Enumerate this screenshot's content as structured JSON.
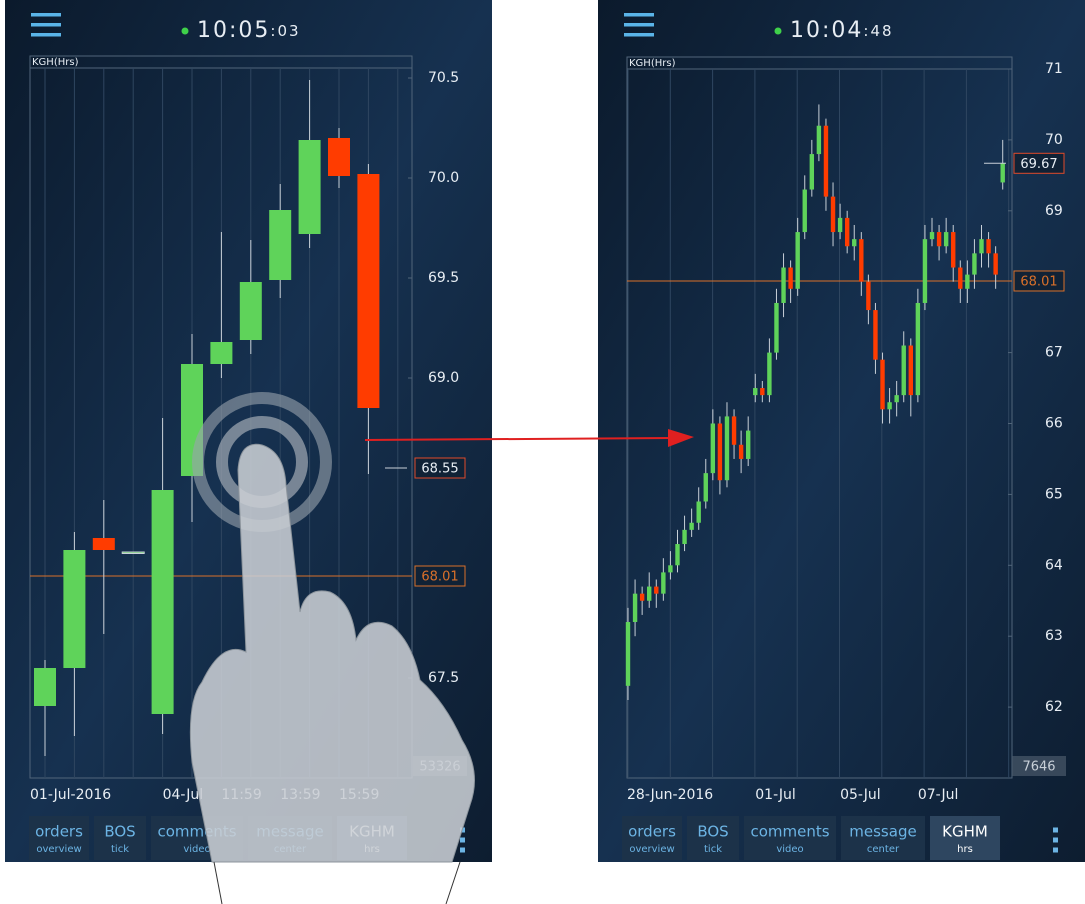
{
  "tabs": [
    {
      "title": "orders",
      "subtitle": "overview"
    },
    {
      "title": "BOS",
      "subtitle": "tick"
    },
    {
      "title": "comments",
      "subtitle": "video"
    },
    {
      "title": "message",
      "subtitle": "center"
    },
    {
      "title": "KGHM",
      "subtitle": "hrs",
      "active": true
    }
  ],
  "screens": [
    {
      "clock": "10:05",
      "clock_seconds": ":03"
    },
    {
      "clock": "10:04",
      "clock_seconds": ":48"
    }
  ],
  "chart_data": [
    {
      "type": "candlestick",
      "title": "KGH(Hrs)",
      "categories": [
        "01-Jul-2016",
        null,
        null,
        null,
        "04-Jul",
        null,
        "11:59",
        null,
        "13:59",
        null,
        "15:59",
        null
      ],
      "open": [
        67.36,
        67.55,
        68.2,
        68.13,
        67.32,
        68.51,
        69.07,
        69.19,
        69.49,
        69.72,
        70.2,
        70.02
      ],
      "high": [
        67.59,
        68.23,
        68.39,
        68.13,
        68.8,
        69.22,
        69.73,
        69.69,
        69.97,
        70.49,
        70.25,
        70.07
      ],
      "low": [
        67.11,
        67.21,
        67.72,
        68.13,
        67.22,
        68.28,
        69.0,
        69.12,
        69.4,
        69.65,
        69.95,
        68.52
      ],
      "close": [
        67.55,
        68.14,
        68.14,
        68.13,
        68.44,
        69.07,
        69.18,
        69.48,
        69.84,
        70.19,
        70.01,
        68.85
      ],
      "ylim": [
        67.0,
        70.55
      ],
      "yticks": [
        67.5,
        {
          "value": 69,
          "label": "69.0"
        },
        69.5,
        {
          "value": 70,
          "label": "70.0"
        },
        70.5
      ],
      "up_color": "#5fd35a",
      "down_color": "#ff3c00",
      "last_price": 68.55,
      "reference_price": 68.01,
      "reference_color": "#d9702a",
      "volume": 53326
    },
    {
      "type": "candlestick",
      "title": "KGH(Hrs)",
      "categories": [
        "28-Jun-2016",
        null,
        null,
        null,
        null,
        null,
        null,
        null,
        null,
        null,
        null,
        null,
        null,
        null,
        null,
        null,
        null,
        null,
        "01-Jul",
        null,
        null,
        null,
        null,
        null,
        null,
        null,
        null,
        null,
        null,
        null,
        "05-Jul",
        null,
        null,
        null,
        null,
        null,
        null,
        null,
        null,
        null,
        null,
        "07-Jul",
        null,
        null,
        null,
        null,
        null,
        null,
        null,
        null,
        null,
        null,
        null,
        null
      ],
      "open": [
        62.3,
        63.2,
        63.6,
        63.5,
        63.7,
        63.6,
        63.9,
        64.0,
        64.3,
        64.5,
        64.6,
        64.9,
        65.3,
        66.0,
        65.2,
        66.1,
        65.7,
        65.5,
        66.4,
        66.5,
        66.4,
        67.0,
        67.7,
        68.2,
        67.9,
        68.7,
        69.3,
        69.8,
        70.2,
        69.2,
        68.7,
        68.9,
        68.5,
        68.6,
        68.0,
        67.6,
        66.9,
        66.2,
        66.3,
        66.4,
        67.1,
        66.4,
        67.7,
        68.6,
        68.7,
        68.5,
        68.7,
        68.2,
        67.9,
        68.1,
        68.4,
        68.6,
        68.4,
        69.4
      ],
      "high": [
        63.4,
        63.8,
        63.7,
        63.9,
        63.8,
        64.1,
        64.2,
        64.5,
        64.7,
        64.8,
        65.1,
        65.5,
        66.2,
        66.1,
        66.3,
        66.2,
        65.9,
        66.1,
        66.7,
        66.6,
        67.2,
        67.9,
        68.4,
        68.3,
        68.9,
        69.5,
        70.0,
        70.5,
        70.3,
        69.4,
        69.1,
        69.0,
        68.8,
        68.7,
        68.1,
        67.7,
        67.0,
        66.5,
        66.6,
        67.3,
        67.2,
        67.9,
        68.8,
        68.9,
        68.8,
        68.9,
        68.8,
        68.3,
        68.3,
        68.6,
        68.8,
        68.7,
        68.5,
        70.0
      ],
      "low": [
        62.1,
        63.0,
        63.3,
        63.4,
        63.4,
        63.5,
        63.8,
        63.9,
        64.2,
        64.4,
        64.5,
        64.8,
        65.2,
        65.0,
        65.1,
        65.5,
        65.3,
        65.4,
        66.3,
        66.3,
        66.3,
        66.9,
        67.5,
        67.7,
        67.8,
        68.6,
        69.2,
        69.7,
        69.0,
        68.5,
        68.6,
        68.4,
        68.3,
        67.8,
        67.4,
        66.7,
        66.0,
        66.0,
        66.1,
        66.3,
        66.1,
        66.3,
        67.6,
        68.5,
        68.3,
        68.4,
        68.0,
        67.7,
        67.7,
        67.9,
        68.2,
        68.2,
        67.9,
        69.3
      ],
      "close": [
        63.2,
        63.6,
        63.5,
        63.7,
        63.6,
        63.9,
        64.0,
        64.3,
        64.5,
        64.6,
        64.9,
        65.3,
        66.0,
        65.2,
        66.1,
        65.7,
        65.5,
        65.9,
        66.5,
        66.4,
        67.0,
        67.7,
        68.2,
        67.9,
        68.7,
        69.3,
        69.8,
        70.2,
        69.2,
        68.7,
        68.9,
        68.5,
        68.6,
        68.0,
        67.6,
        66.9,
        66.2,
        66.3,
        66.4,
        67.1,
        66.4,
        67.7,
        68.6,
        68.7,
        68.5,
        68.7,
        68.2,
        67.9,
        68.1,
        68.4,
        68.6,
        68.4,
        68.1,
        69.67
      ],
      "ylim": [
        61,
        71
      ],
      "yticks": [
        62,
        63,
        64,
        65,
        66,
        67,
        69,
        70,
        71
      ],
      "up_color": "#5fd35a",
      "down_color": "#ff3c00",
      "last_price": 69.67,
      "reference_price": 68.01,
      "reference_color": "#d9702a",
      "volume": 7646
    }
  ]
}
